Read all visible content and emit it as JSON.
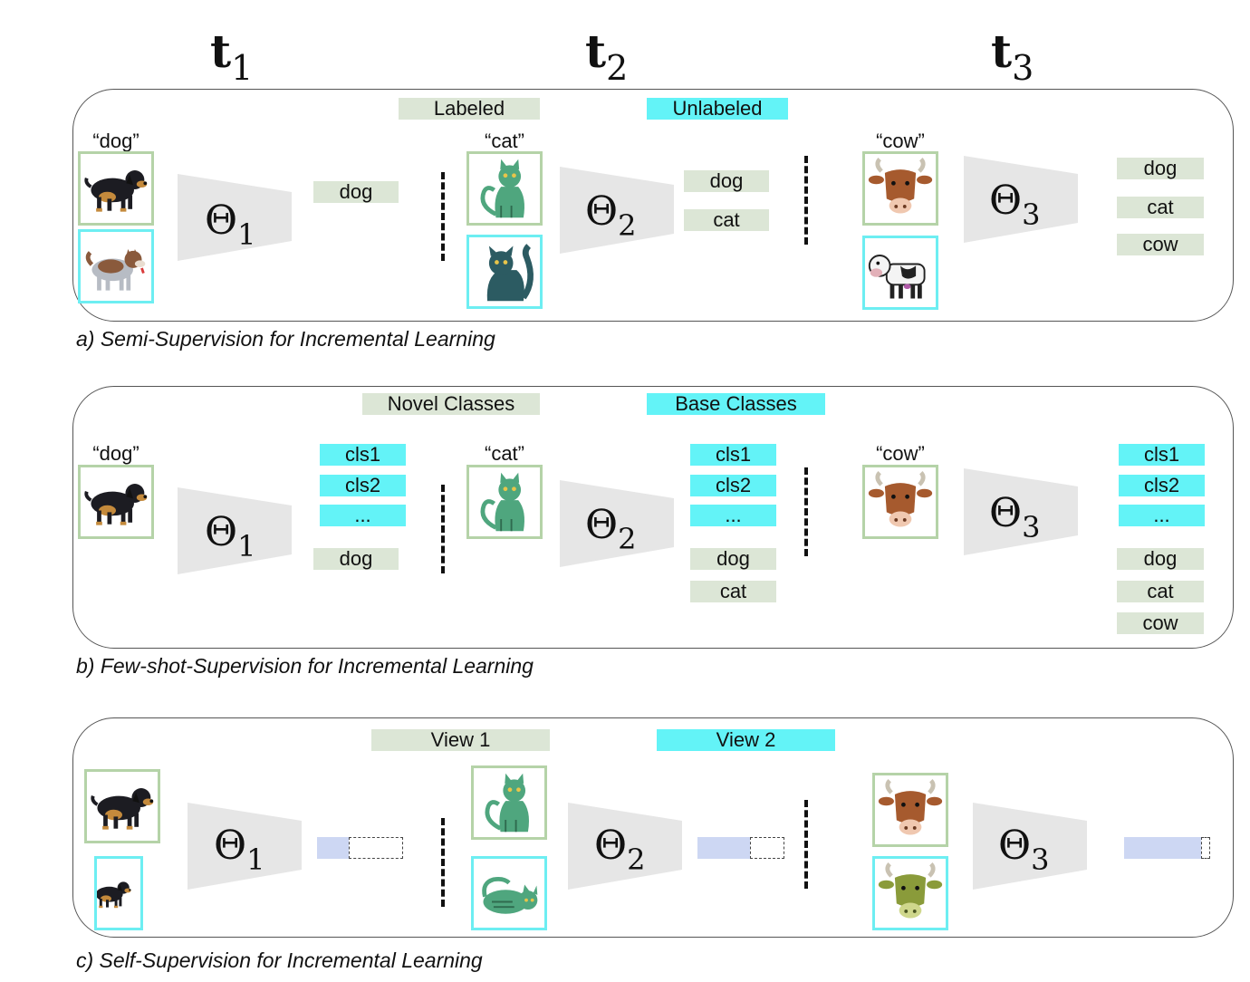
{
  "timesteps": [
    {
      "symbol": "t",
      "sub": "1"
    },
    {
      "symbol": "t",
      "sub": "2"
    },
    {
      "symbol": "t",
      "sub": "3"
    }
  ],
  "theta": {
    "symbol": "Θ",
    "subs": [
      "1",
      "2",
      "3"
    ]
  },
  "panel_a": {
    "caption": "a) Semi-Supervision for Incremental Learning",
    "legend": {
      "labeled": "Labeled",
      "unlabeled": "Unlabeled"
    },
    "quotes": [
      "“dog”",
      "“cat”",
      "“cow”"
    ],
    "outputs": {
      "t1": [
        "dog"
      ],
      "t2": [
        "dog",
        "cat"
      ],
      "t3": [
        "dog",
        "cat",
        "cow"
      ]
    }
  },
  "panel_b": {
    "caption": "b) Few-shot-Supervision for Incremental Learning",
    "legend": {
      "novel": "Novel Classes",
      "base": "Base Classes"
    },
    "quotes": [
      "“dog”",
      "“cat”",
      "“cow”"
    ],
    "base": [
      "cls1",
      "cls2",
      "..."
    ],
    "outputs": {
      "t1": [
        "dog"
      ],
      "t2": [
        "dog",
        "cat"
      ],
      "t3": [
        "dog",
        "cat",
        "cow"
      ]
    }
  },
  "panel_c": {
    "caption": "c) Self-Supervision for Incremental Learning",
    "legend": {
      "view1": "View 1",
      "view2": "View 2"
    }
  },
  "colors": {
    "labeled": "#dce6d6",
    "unlabeled": "#63f3f7",
    "embedding": "#cdd7f3"
  },
  "icons": {
    "dog": "dog-icon",
    "dog_gray": "husky-icon",
    "cat": "cat-icon",
    "cat_dark": "dark-cat-icon",
    "cow": "cow-head-icon",
    "cow_full": "cow-icon",
    "cat_lying": "lying-cat-icon",
    "cow_olive": "olive-cow-head-icon"
  }
}
